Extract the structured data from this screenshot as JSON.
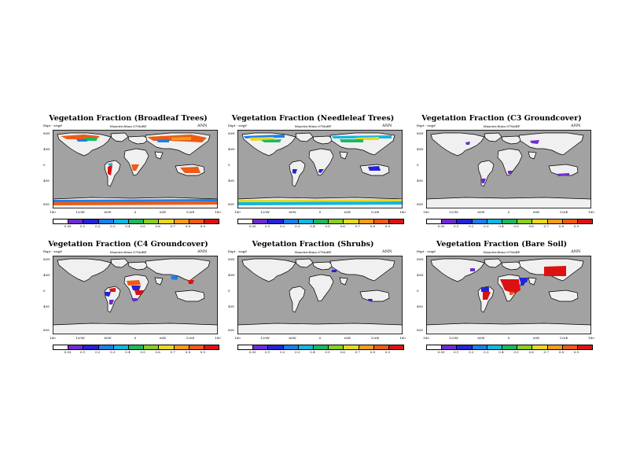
{
  "figure": {
    "experiment_label": "Expt - zzqyf",
    "season": "ANN",
    "lat_labels": [
      "80N",
      "40N",
      "0",
      "40S",
      "80S"
    ],
    "lon_labels": [
      "180",
      "120W",
      "60W",
      "0",
      "60E",
      "120E",
      "180"
    ],
    "colorbar_ticks": [
      "0.05",
      "0.1",
      "0.2",
      "0.3",
      "0.4",
      "0.5",
      "0.6",
      "0.7",
      "0.8",
      "0.9"
    ],
    "colorbar_colors": [
      "#ffffff",
      "#6e2bd0",
      "#2323d8",
      "#1b7fe8",
      "#10b7e0",
      "#1db860",
      "#8ace22",
      "#e8d81e",
      "#f29d1c",
      "#ee5b16",
      "#dd1111"
    ],
    "colors": {
      "ocean": "#a2a2a2",
      "land_bare": "#f0f0f0",
      "coast": "#000000"
    }
  },
  "panels": [
    {
      "title": "Vegetation Fraction (Broadleaf Trees)",
      "subtitle": "Maastrichtian 67MaBP",
      "pattern": "broadleaf"
    },
    {
      "title": "Vegetation Fraction (Needleleaf Trees)",
      "subtitle": "Maastrichtian 67MaBP",
      "pattern": "needleleaf"
    },
    {
      "title": "Vegetation Fraction (C3 Groundcover)",
      "subtitle": "Maastrichtian 67MaBP",
      "pattern": "c3"
    },
    {
      "title": "Vegetation Fraction (C4 Groundcover)",
      "subtitle": "Maastrichtian 67MaBP",
      "pattern": "c4"
    },
    {
      "title": "Vegetation Fraction (Shrubs)",
      "subtitle": "Maastrichtian 67MaBP",
      "pattern": "shrubs"
    },
    {
      "title": "Vegetation Fraction (Bare Soil)",
      "subtitle": "Maastrichtian 67MaBP",
      "pattern": "bare"
    }
  ]
}
